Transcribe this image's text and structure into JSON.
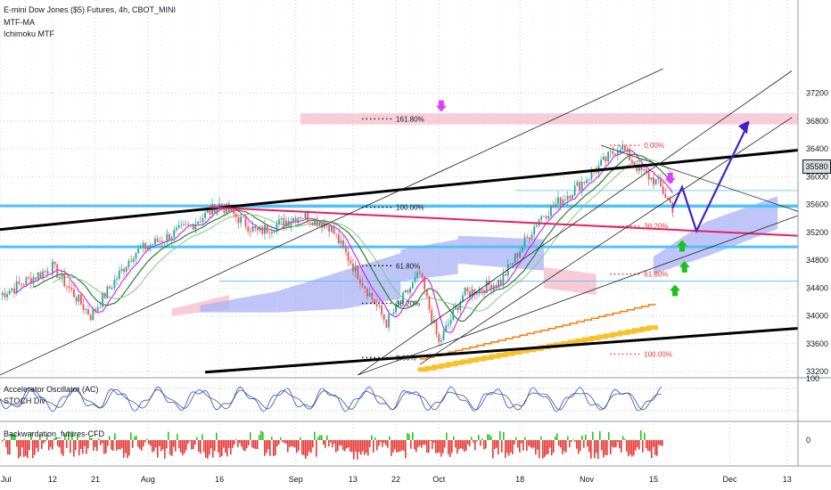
{
  "chart": {
    "title": "E-mini Dow Jones ($5) Futures, 4h, CBOT_MINI",
    "indicators": [
      "MTF-MA",
      "Ichimoku MTF"
    ],
    "current_price": "35580",
    "colors": {
      "grid": "#c8ccd6",
      "trend_black": "#000000",
      "blue_level": "#4fc3f7",
      "pink_line": "#e91e63",
      "purple_path": "#3f23c9",
      "magenta_arrow": "#e040fb",
      "green_arrow": "#19c219",
      "cloud_blue": "#aab2f5",
      "cloud_pink": "#f5b9c8",
      "orange_ma": "#f57c00",
      "yellow_ma": "#f7c22c",
      "fib_red": "#e53935",
      "fib_dark": "#131722"
    }
  },
  "chart_data": [
    {
      "type": "line",
      "title": "E-mini Dow Jones ($5) Futures, 4h, CBOT_MINI",
      "y_ticks": [
        "37200",
        "36800",
        "36400",
        "36000",
        "35600",
        "35200",
        "34800",
        "34400",
        "34000",
        "33600",
        "33200"
      ],
      "x_ticks": [
        "Jul",
        "12",
        "21",
        "Aug",
        "16",
        "Sep",
        "13",
        "22",
        "Oct",
        "18",
        "Nov",
        "15",
        "Dec",
        "13"
      ],
      "ylim": [
        33150,
        37500
      ],
      "price_path": {
        "x": [
          "Jul 01",
          "Jul 12",
          "Jul 20",
          "Jul 29",
          "Aug 10",
          "Aug 16",
          "Aug 24",
          "Sep 02",
          "Sep 08",
          "Sep 20",
          "Sep 27",
          "Oct 01",
          "Oct 06",
          "Oct 14",
          "Oct 22",
          "Oct 29",
          "Nov 03",
          "Nov 08",
          "Nov 12",
          "Nov 16",
          "Nov 19"
        ],
        "y": [
          34300,
          34700,
          34000,
          34900,
          35300,
          35600,
          35200,
          35450,
          35300,
          33900,
          34600,
          33600,
          34300,
          34500,
          35400,
          35800,
          36100,
          36450,
          36100,
          35900,
          35550
        ]
      },
      "fib_levels": [
        {
          "label": "161.80%",
          "value": 36830
        },
        {
          "label": "100.00%",
          "value": 35560
        },
        {
          "label": "61.80%",
          "value": 34720
        },
        {
          "label": "38.20%",
          "value": 34180
        },
        {
          "label": "0.00%",
          "value": 33400
        },
        {
          "label": "0.00%",
          "value": 36450
        },
        {
          "label": "38.20%",
          "value": 35290
        },
        {
          "label": "61.80%",
          "value": 34600
        },
        {
          "label": "100.00%",
          "value": 33450
        }
      ],
      "horizontal_levels": [
        35580,
        34990
      ],
      "projection_path": {
        "x": [
          "Nov 19",
          "Nov 21",
          "Nov 24",
          "Dec 05"
        ],
        "y": [
          35550,
          35850,
          35220,
          36780
        ]
      },
      "current_price": 35580
    },
    {
      "type": "line",
      "title": "Accelerator Oscillator (AC)",
      "subtitle": "STOCH Div",
      "y_ticks": [
        "100"
      ]
    },
    {
      "type": "bar",
      "title": "Backwardation_futures-CFD",
      "y_ticks": [
        "0"
      ]
    }
  ],
  "sub_panels": {
    "oscillator": {
      "title": "Accelerator Oscillator (AC)",
      "subtitle": "STOCH Div",
      "tick": "100"
    },
    "backwardation": {
      "title": "Backwardation_futures-CFD",
      "tick": "0"
    }
  }
}
